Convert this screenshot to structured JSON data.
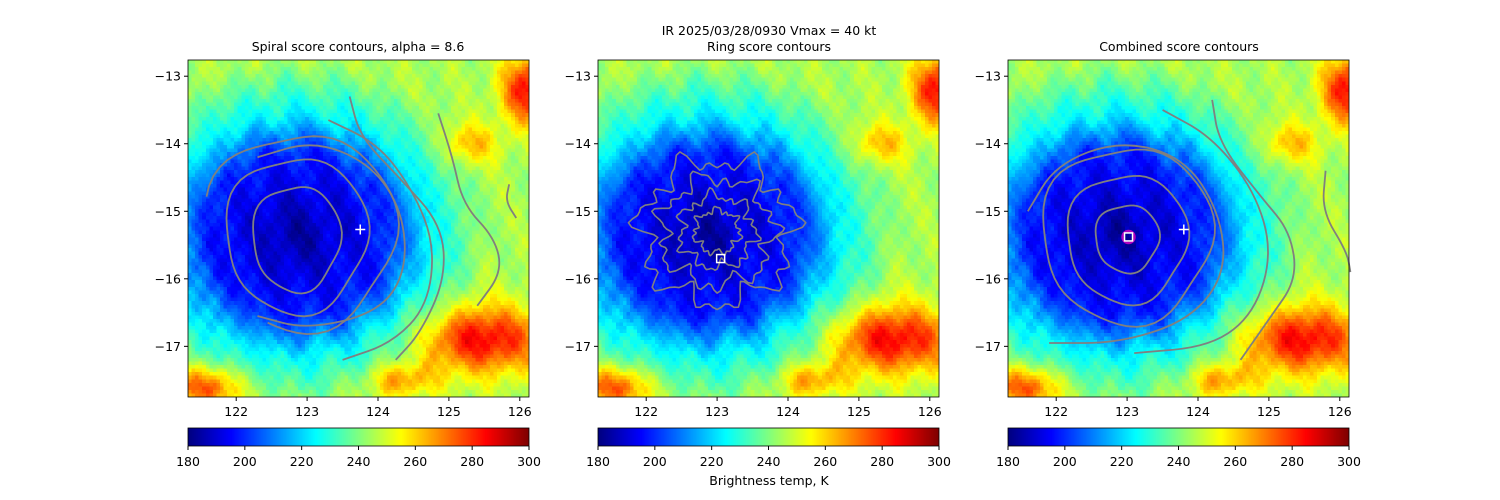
{
  "suptitle": "IR  2025/03/28/0930    Vmax = 40 kt",
  "colorbar_label": "Brightness temp, K",
  "chart_data": [
    {
      "type": "heatmap",
      "title": "Spiral score contours, alpha =  8.6",
      "xlim": [
        121.32,
        126.13
      ],
      "ylim": [
        -17.75,
        -12.76
      ],
      "xticks": [
        "122",
        "123",
        "124",
        "125",
        "126"
      ],
      "yticks": [
        "−13",
        "−14",
        "−15",
        "−16",
        "−17"
      ],
      "colormap": "jet",
      "clim": [
        180,
        300
      ],
      "colorbar_ticks": [
        "180",
        "200",
        "220",
        "240",
        "260",
        "280",
        "300"
      ],
      "storm_center": [
        122.85,
        -15.35
      ],
      "markers": [
        {
          "shape": "plus",
          "lon": 123.75,
          "lat": -15.27,
          "color": "#ffffff"
        }
      ],
      "contour_color": "#808080",
      "contours": {
        "ellipses": [
          {
            "c": [
              122.85,
              -15.4
            ],
            "r": [
              0.62,
              0.78
            ],
            "a": [
              0,
              360
            ]
          },
          {
            "c": [
              122.85,
              -15.35
            ],
            "r": [
              1.0,
              1.15
            ],
            "a": [
              0,
              360
            ]
          },
          {
            "c": [
              122.9,
              -15.3
            ],
            "r": [
              1.35,
              1.45
            ],
            "a": [
              -110,
              160
            ]
          }
        ],
        "lines": [
          [
            [
              122.3,
              -14.2
            ],
            [
              123.1,
              -13.95
            ],
            [
              123.9,
              -14.3
            ],
            [
              124.35,
              -15.0
            ],
            [
              124.4,
              -15.9
            ],
            [
              124.0,
              -16.5
            ],
            [
              123.0,
              -16.75
            ],
            [
              122.3,
              -16.55
            ]
          ],
          [
            [
              123.3,
              -13.65
            ],
            [
              124.0,
              -14.0
            ],
            [
              124.5,
              -14.7
            ],
            [
              124.8,
              -15.5
            ],
            [
              124.7,
              -16.4
            ],
            [
              124.2,
              -16.95
            ],
            [
              123.5,
              -17.2
            ]
          ],
          [
            [
              123.6,
              -13.3
            ],
            [
              123.75,
              -13.9
            ],
            [
              124.3,
              -14.5
            ],
            [
              124.9,
              -15.2
            ],
            [
              124.95,
              -16.0
            ],
            [
              124.6,
              -16.8
            ],
            [
              124.25,
              -17.2
            ]
          ],
          [
            [
              124.85,
              -13.55
            ],
            [
              125.05,
              -14.2
            ],
            [
              125.2,
              -14.9
            ],
            [
              125.65,
              -15.4
            ],
            [
              125.75,
              -15.9
            ],
            [
              125.4,
              -16.4
            ]
          ],
          [
            [
              125.85,
              -14.6
            ],
            [
              125.8,
              -14.85
            ],
            [
              125.95,
              -15.1
            ]
          ]
        ]
      }
    },
    {
      "type": "heatmap",
      "title": "Ring score contours",
      "xlim": [
        121.32,
        126.13
      ],
      "ylim": [
        -17.75,
        -12.76
      ],
      "xticks": [
        "122",
        "123",
        "124",
        "125",
        "126"
      ],
      "yticks": [
        "−13",
        "−14",
        "−15",
        "−16",
        "−17"
      ],
      "colormap": "jet",
      "clim": [
        180,
        300
      ],
      "colorbar_ticks": [
        "180",
        "200",
        "220",
        "240",
        "260",
        "280",
        "300"
      ],
      "storm_center": [
        122.85,
        -15.35
      ],
      "markers": [
        {
          "shape": "square",
          "lon": 123.05,
          "lat": -15.7,
          "color": "#ffffff"
        }
      ],
      "contour_color": "#808080",
      "contours": {
        "ring": {
          "c": [
            123.0,
            -15.3
          ],
          "r": [
            1.05,
            1.05
          ]
        }
      }
    },
    {
      "type": "heatmap",
      "title": "Combined score contours",
      "xlim": [
        121.32,
        126.13
      ],
      "ylim": [
        -17.75,
        -12.76
      ],
      "xticks": [
        "122",
        "123",
        "124",
        "125",
        "126"
      ],
      "yticks": [
        "−13",
        "−14",
        "−15",
        "−16",
        "−17"
      ],
      "colormap": "jet",
      "clim": [
        180,
        300
      ],
      "colorbar_ticks": [
        "180",
        "200",
        "220",
        "240",
        "260",
        "280",
        "300"
      ],
      "storm_center": [
        122.85,
        -15.35
      ],
      "markers": [
        {
          "shape": "plus",
          "lon": 123.8,
          "lat": -15.27,
          "color": "#ffffff"
        },
        {
          "shape": "square-circle",
          "lon": 123.02,
          "lat": -15.38,
          "color": "#ffffff",
          "ring_color": "#b000c0"
        }
      ],
      "contour_color": "#808080",
      "contours": {
        "ellipses": [
          {
            "c": [
              123.0,
              -15.4
            ],
            "r": [
              0.45,
              0.5
            ],
            "a": [
              0,
              360
            ]
          },
          {
            "c": [
              123.0,
              -15.4
            ],
            "r": [
              0.85,
              0.95
            ],
            "a": [
              0,
              360
            ]
          },
          {
            "c": [
              123.0,
              -15.35
            ],
            "r": [
              1.2,
              1.3
            ],
            "a": [
              0,
              360
            ]
          }
        ],
        "lines": [
          [
            [
              121.6,
              -15.0
            ],
            [
              122.0,
              -14.3
            ],
            [
              122.9,
              -13.95
            ],
            [
              123.8,
              -14.2
            ],
            [
              124.3,
              -15.0
            ],
            [
              124.4,
              -15.9
            ],
            [
              123.9,
              -16.6
            ],
            [
              122.9,
              -16.95
            ],
            [
              121.9,
              -16.95
            ]
          ],
          [
            [
              123.5,
              -13.5
            ],
            [
              124.2,
              -13.9
            ],
            [
              124.8,
              -14.7
            ],
            [
              125.05,
              -15.6
            ],
            [
              124.8,
              -16.5
            ],
            [
              124.2,
              -17.0
            ],
            [
              123.1,
              -17.1
            ]
          ],
          [
            [
              124.2,
              -13.35
            ],
            [
              124.3,
              -14.0
            ],
            [
              124.9,
              -14.8
            ],
            [
              125.3,
              -15.3
            ],
            [
              125.4,
              -16.0
            ],
            [
              125.0,
              -16.6
            ],
            [
              124.6,
              -17.2
            ]
          ],
          [
            [
              125.8,
              -14.4
            ],
            [
              125.75,
              -15.0
            ],
            [
              126.1,
              -15.6
            ],
            [
              126.15,
              -15.9
            ]
          ]
        ]
      }
    }
  ]
}
